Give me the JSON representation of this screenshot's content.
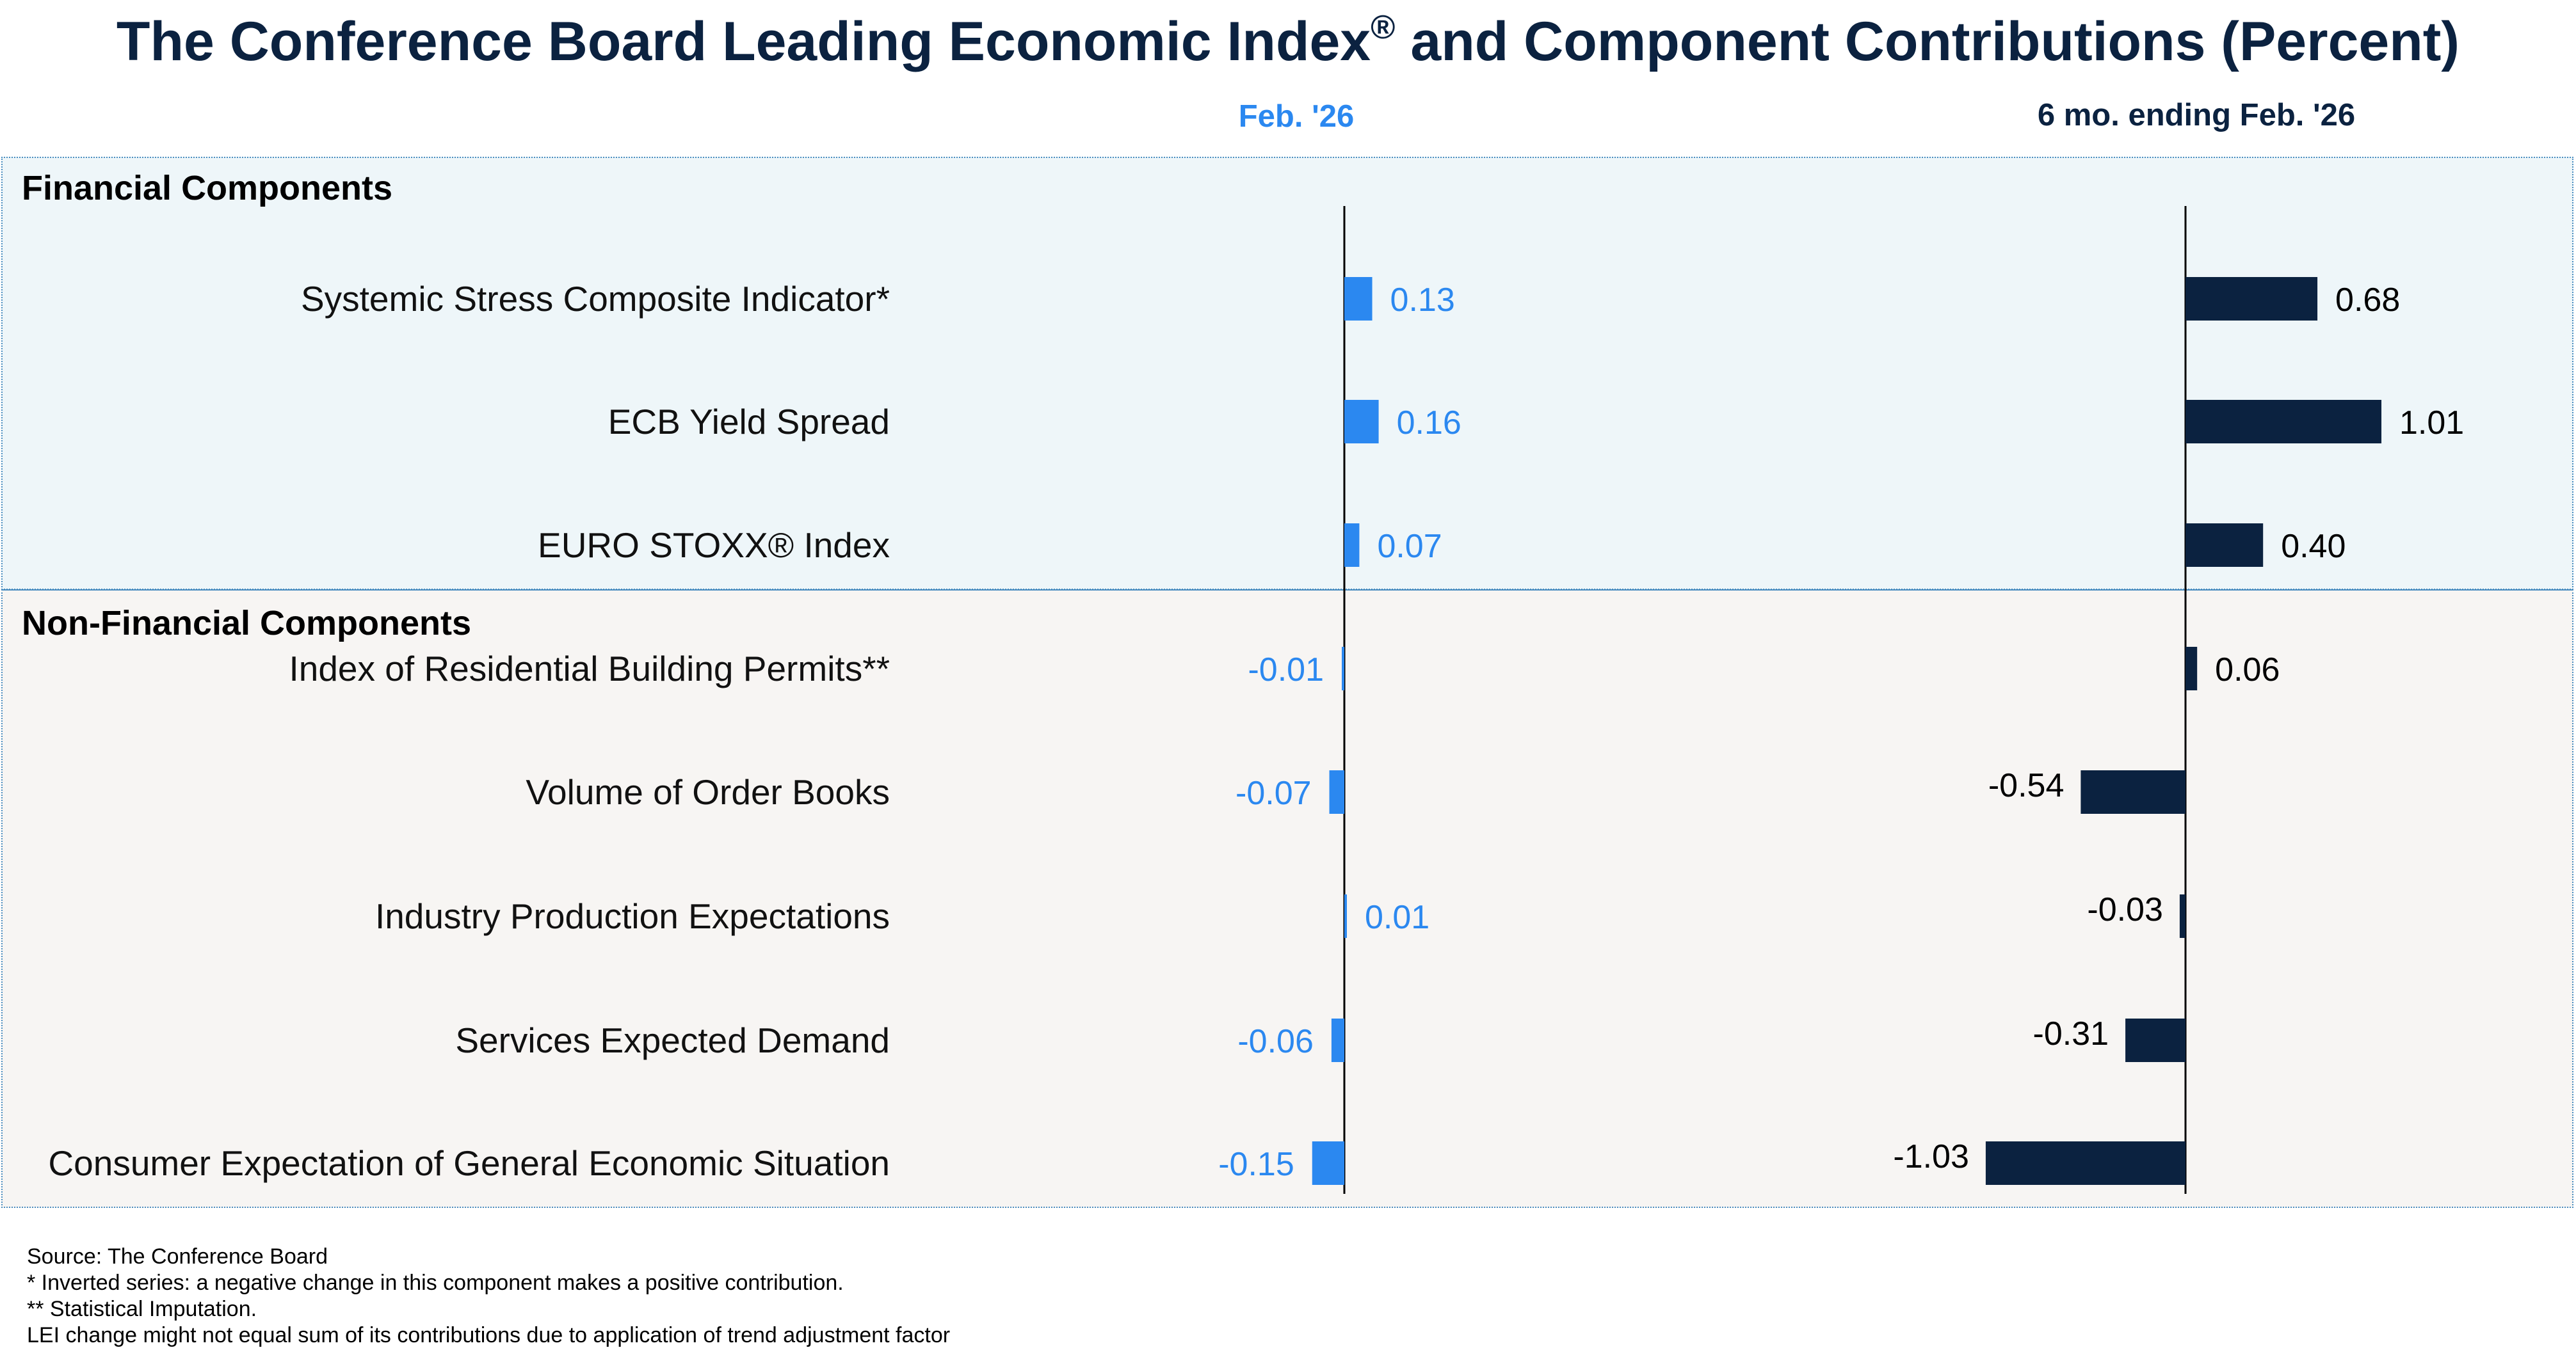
{
  "chart_data": {
    "type": "bar",
    "title": "The Conference Board Leading Economic Index",
    "title_mark": "®",
    "title_suffix": " and Component Contributions (Percent)",
    "column_headers": [
      "Feb. '26",
      "6 mo. ending Feb. '26"
    ],
    "sections": [
      {
        "name": "Financial Components",
        "rows": [
          0,
          1,
          2
        ]
      },
      {
        "name": "Non-Financial Components",
        "rows": [
          3,
          4,
          5,
          6,
          7
        ]
      }
    ],
    "categories": [
      "Systemic Stress Composite Indicator*",
      "ECB Yield Spread",
      "EURO STOXX® Index",
      "Index of Residential Building Permits**",
      "Volume of Order Books",
      "Industry Production Expectations",
      "Services Expected Demand",
      "Consumer Expectation of General Economic Situation"
    ],
    "series": [
      {
        "name": "Feb. '26",
        "color": "#2b88f0",
        "values": [
          0.13,
          0.16,
          0.07,
          -0.01,
          -0.07,
          0.01,
          -0.06,
          -0.15
        ],
        "labels": [
          "0.13",
          "0.16",
          "0.07",
          "-0.01",
          "-0.07",
          "0.01",
          "-0.06",
          "-0.15"
        ]
      },
      {
        "name": "6 mo. ending Feb. '26",
        "color": "#0b2240",
        "values": [
          0.68,
          1.01,
          0.4,
          0.06,
          -0.54,
          -0.03,
          -0.31,
          -1.03
        ],
        "labels": [
          "0.68",
          "1.01",
          "0.40",
          "0.06",
          "-0.54",
          "-0.03",
          "-0.31",
          "-1.03"
        ]
      }
    ],
    "footnotes": [
      "Source: The Conference Board",
      "* Inverted series: a negative change in this component makes a positive contribution.",
      "**  Statistical Imputation.",
      "LEI change might not equal sum of its contributions due to application of trend adjustment factor"
    ],
    "panel_colors": {
      "financial": "#eef6f9",
      "non_financial": "#f7f5f3",
      "border": "#4a8dc0"
    }
  }
}
